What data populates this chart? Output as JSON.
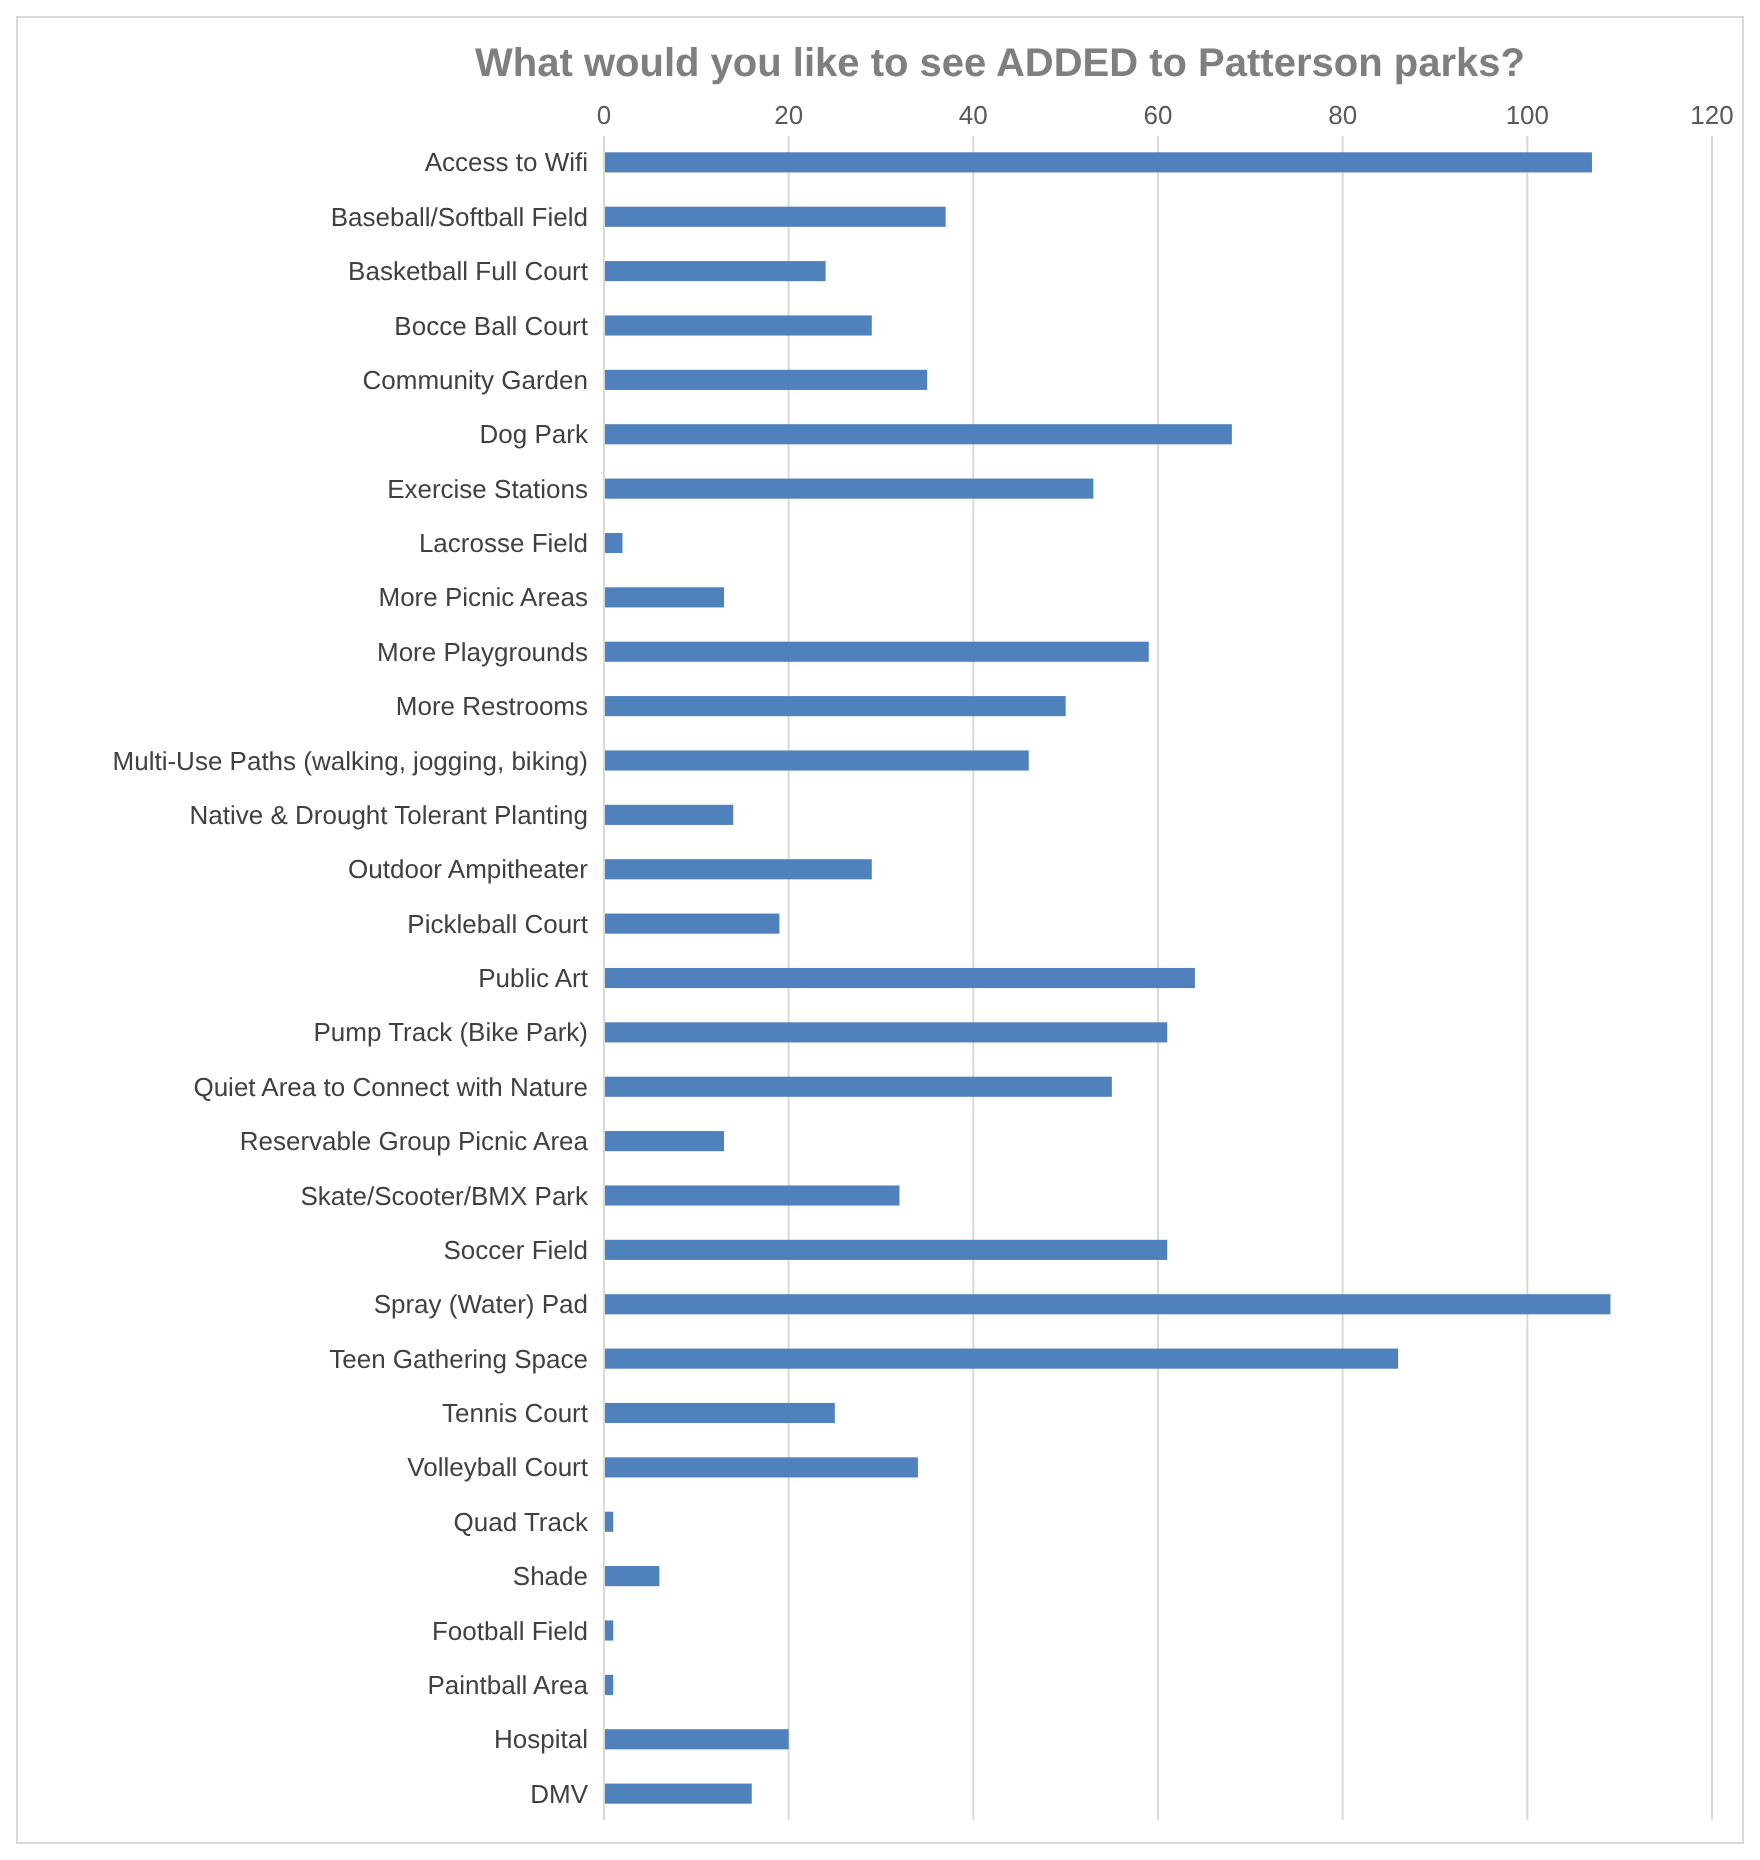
{
  "chart_data": {
    "type": "bar",
    "orientation": "horizontal",
    "title": "What would you like to see ADDED to Patterson parks?",
    "categories": [
      "Access to Wifi",
      "Baseball/Softball Field",
      "Basketball Full Court",
      "Bocce Ball Court",
      "Community Garden",
      "Dog Park",
      "Exercise Stations",
      "Lacrosse Field",
      "More Picnic Areas",
      "More Playgrounds",
      "More Restrooms",
      "Multi-Use Paths (walking, jogging, biking)",
      "Native & Drought Tolerant Planting",
      "Outdoor Ampitheater",
      "Pickleball Court",
      "Public Art",
      "Pump Track (Bike Park)",
      "Quiet Area to Connect with Nature",
      "Reservable Group Picnic Area",
      "Skate/Scooter/BMX Park",
      "Soccer Field",
      "Spray (Water) Pad",
      "Teen Gathering Space",
      "Tennis Court",
      "Volleyball Court",
      "Quad Track",
      "Shade",
      "Football Field",
      "Paintball Area",
      "Hospital",
      "DMV"
    ],
    "values": [
      107,
      37,
      24,
      29,
      35,
      68,
      53,
      2,
      13,
      59,
      50,
      46,
      14,
      29,
      19,
      64,
      61,
      55,
      13,
      32,
      61,
      109,
      86,
      25,
      34,
      1,
      6,
      1,
      1,
      20,
      16
    ],
    "color": "#4f81bd",
    "xlim": [
      0,
      120
    ],
    "xticks": [
      0,
      20,
      40,
      60,
      80,
      100,
      120
    ],
    "grid": "x"
  }
}
